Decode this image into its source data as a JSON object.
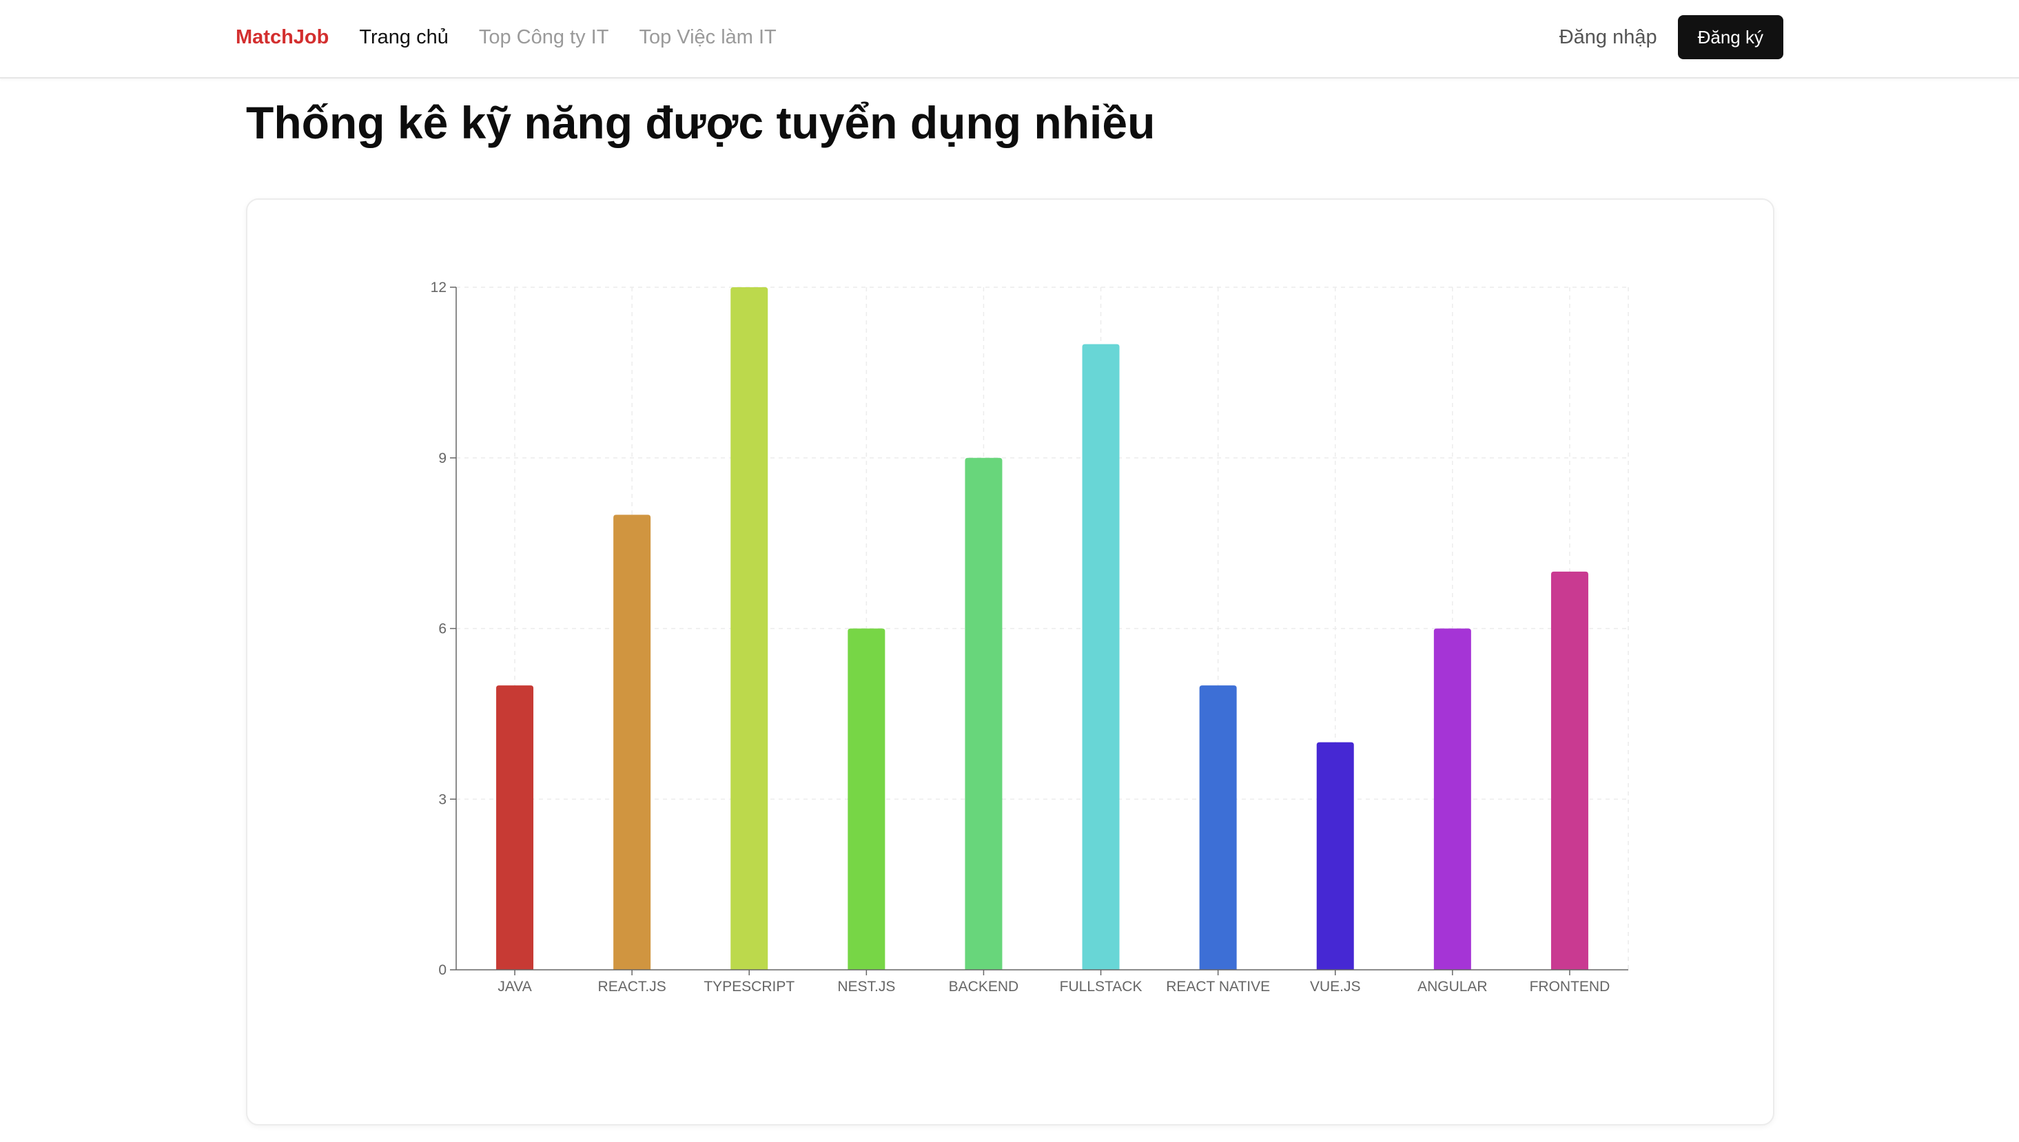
{
  "header": {
    "brand": "MatchJob",
    "nav": [
      {
        "label": "Trang chủ",
        "active": true
      },
      {
        "label": "Top Công ty IT",
        "active": false
      },
      {
        "label": "Top Việc làm IT",
        "active": false
      }
    ],
    "login_label": "Đăng nhập",
    "signup_label": "Đăng ký"
  },
  "page": {
    "title": "Thống kê kỹ năng được tuyển dụng nhiều"
  },
  "colors": {
    "brand": "#d32f2f",
    "signup_bg": "#111111"
  },
  "chart_data": {
    "type": "bar",
    "title": "",
    "xlabel": "",
    "ylabel": "",
    "categories": [
      "JAVA",
      "REACT.JS",
      "TYPESCRIPT",
      "NEST.JS",
      "BACKEND",
      "FULLSTACK",
      "REACT NATIVE",
      "VUE.JS",
      "ANGULAR",
      "FRONTEND"
    ],
    "values": [
      5,
      8,
      12,
      6,
      9,
      11,
      5,
      4,
      6,
      7
    ],
    "colors": [
      "#c73a34",
      "#d09540",
      "#bcd94c",
      "#77d646",
      "#68d67b",
      "#68d6d6",
      "#3d6fd6",
      "#4628d3",
      "#a534d6",
      "#c93a91"
    ],
    "ylim": [
      0,
      12
    ],
    "yticks": [
      0,
      3,
      6,
      9,
      12
    ],
    "grid": true,
    "legend": "none"
  }
}
